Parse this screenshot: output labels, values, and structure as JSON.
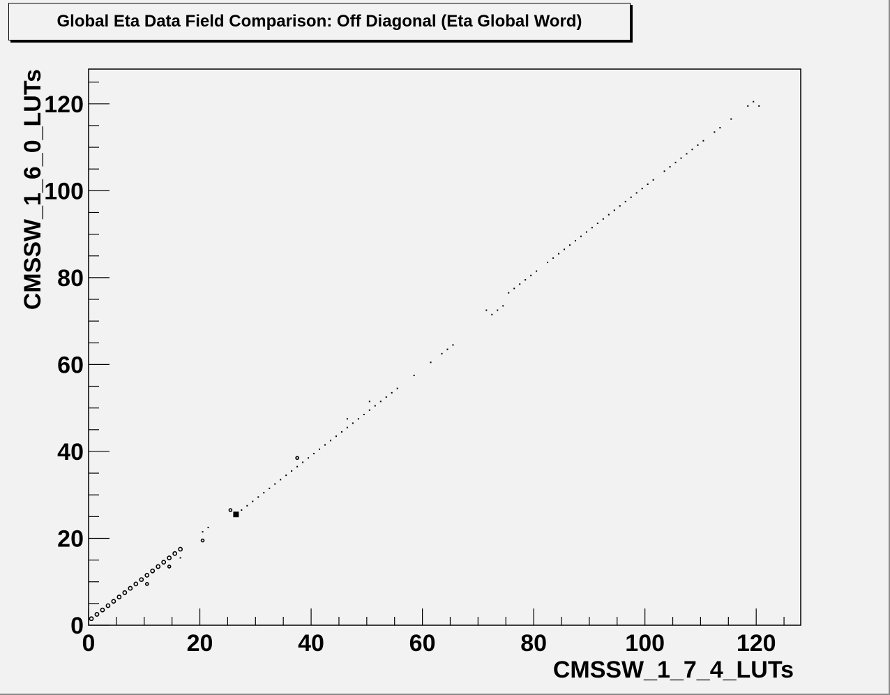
{
  "chart_data": {
    "type": "scatter",
    "title": "Global Eta Data Field Comparison: Off Diagonal (Eta Global Word)",
    "xlabel": "CMSSW_1_7_4_LUTs",
    "ylabel": "CMSSW_1_6_0_LUTs",
    "xlim": [
      0,
      128
    ],
    "ylim": [
      0,
      128
    ],
    "x_ticks": [
      0,
      20,
      40,
      60,
      80,
      100,
      120
    ],
    "y_ticks": [
      0,
      20,
      40,
      60,
      80,
      100,
      120
    ],
    "x_tick_labels": [
      "0",
      "20",
      "40",
      "60",
      "80",
      "100",
      "120"
    ],
    "y_tick_labels": [
      "0",
      "20",
      "40",
      "60",
      "80",
      "100",
      "120"
    ],
    "grid": false,
    "marker_color": "#000000",
    "background": "#f2f2f2",
    "points": [
      {
        "x": 0.5,
        "y": 1.5,
        "w": 3
      },
      {
        "x": 1.5,
        "y": 2.5,
        "w": 3
      },
      {
        "x": 2.5,
        "y": 3.5,
        "w": 3
      },
      {
        "x": 3.5,
        "y": 4.5,
        "w": 3
      },
      {
        "x": 4.5,
        "y": 5.5,
        "w": 3
      },
      {
        "x": 5.5,
        "y": 6.5,
        "w": 3
      },
      {
        "x": 6.5,
        "y": 7.5,
        "w": 3
      },
      {
        "x": 7.5,
        "y": 8.5,
        "w": 3
      },
      {
        "x": 8.5,
        "y": 9.5,
        "w": 3
      },
      {
        "x": 9.5,
        "y": 10.5,
        "w": 3
      },
      {
        "x": 10.5,
        "y": 11.5,
        "w": 3
      },
      {
        "x": 11.5,
        "y": 12.5,
        "w": 3
      },
      {
        "x": 12.5,
        "y": 13.5,
        "w": 3
      },
      {
        "x": 13.5,
        "y": 14.5,
        "w": 3
      },
      {
        "x": 14.5,
        "y": 15.5,
        "w": 3
      },
      {
        "x": 15.5,
        "y": 16.5,
        "w": 3
      },
      {
        "x": 16.5,
        "y": 17.5,
        "w": 3
      },
      {
        "x": 10.5,
        "y": 9.5,
        "w": 2
      },
      {
        "x": 14.5,
        "y": 13.5,
        "w": 2
      },
      {
        "x": 16.5,
        "y": 15.5,
        "w": 1
      },
      {
        "x": 20.5,
        "y": 19.5,
        "w": 2
      },
      {
        "x": 20.5,
        "y": 21.5,
        "w": 1
      },
      {
        "x": 21.5,
        "y": 22.5,
        "w": 1
      },
      {
        "x": 25.5,
        "y": 26.5,
        "w": 2
      },
      {
        "x": 26.5,
        "y": 25.5,
        "w": 5
      },
      {
        "x": 27.5,
        "y": 26.5,
        "w": 1
      },
      {
        "x": 28.5,
        "y": 27.5,
        "w": 1
      },
      {
        "x": 29.5,
        "y": 28.5,
        "w": 1
      },
      {
        "x": 30.5,
        "y": 29.5,
        "w": 1
      },
      {
        "x": 31.5,
        "y": 30.5,
        "w": 1
      },
      {
        "x": 32.5,
        "y": 31.5,
        "w": 1
      },
      {
        "x": 33.5,
        "y": 32.5,
        "w": 1
      },
      {
        "x": 34.5,
        "y": 33.5,
        "w": 1
      },
      {
        "x": 35.5,
        "y": 34.5,
        "w": 1
      },
      {
        "x": 36.5,
        "y": 35.5,
        "w": 1
      },
      {
        "x": 37.5,
        "y": 36.5,
        "w": 1
      },
      {
        "x": 37.5,
        "y": 38.5,
        "w": 2
      },
      {
        "x": 38.5,
        "y": 37.5,
        "w": 1
      },
      {
        "x": 39.5,
        "y": 38.5,
        "w": 1
      },
      {
        "x": 40.5,
        "y": 39.5,
        "w": 1
      },
      {
        "x": 41.5,
        "y": 40.5,
        "w": 1
      },
      {
        "x": 42.5,
        "y": 41.5,
        "w": 1
      },
      {
        "x": 43.5,
        "y": 42.5,
        "w": 1
      },
      {
        "x": 44.5,
        "y": 43.5,
        "w": 1
      },
      {
        "x": 45.5,
        "y": 44.5,
        "w": 1
      },
      {
        "x": 46.5,
        "y": 45.5,
        "w": 1
      },
      {
        "x": 46.5,
        "y": 47.5,
        "w": 1
      },
      {
        "x": 47.5,
        "y": 46.5,
        "w": 1
      },
      {
        "x": 48.5,
        "y": 47.5,
        "w": 1
      },
      {
        "x": 49.5,
        "y": 48.5,
        "w": 1
      },
      {
        "x": 50.5,
        "y": 49.5,
        "w": 1
      },
      {
        "x": 50.5,
        "y": 51.5,
        "w": 1
      },
      {
        "x": 51.5,
        "y": 50.5,
        "w": 1
      },
      {
        "x": 52.5,
        "y": 51.5,
        "w": 1
      },
      {
        "x": 53.5,
        "y": 52.5,
        "w": 1
      },
      {
        "x": 54.5,
        "y": 53.5,
        "w": 1
      },
      {
        "x": 55.5,
        "y": 54.5,
        "w": 1
      },
      {
        "x": 58.5,
        "y": 57.5,
        "w": 1
      },
      {
        "x": 61.5,
        "y": 60.5,
        "w": 1
      },
      {
        "x": 63.5,
        "y": 62.5,
        "w": 1
      },
      {
        "x": 64.5,
        "y": 63.5,
        "w": 1
      },
      {
        "x": 65.5,
        "y": 64.5,
        "w": 1
      },
      {
        "x": 71.5,
        "y": 72.5,
        "w": 1
      },
      {
        "x": 72.5,
        "y": 71.5,
        "w": 1
      },
      {
        "x": 73.5,
        "y": 72.5,
        "w": 1
      },
      {
        "x": 74.5,
        "y": 73.5,
        "w": 1
      },
      {
        "x": 75.5,
        "y": 76.5,
        "w": 1
      },
      {
        "x": 76.5,
        "y": 77.5,
        "w": 1
      },
      {
        "x": 77.5,
        "y": 78.5,
        "w": 1
      },
      {
        "x": 78.5,
        "y": 79.5,
        "w": 1
      },
      {
        "x": 79.5,
        "y": 80.5,
        "w": 1
      },
      {
        "x": 80.5,
        "y": 81.5,
        "w": 1
      },
      {
        "x": 82.5,
        "y": 83.5,
        "w": 1
      },
      {
        "x": 83.5,
        "y": 84.5,
        "w": 1
      },
      {
        "x": 84.5,
        "y": 85.5,
        "w": 1
      },
      {
        "x": 85.5,
        "y": 86.5,
        "w": 1
      },
      {
        "x": 86.5,
        "y": 87.5,
        "w": 1
      },
      {
        "x": 87.5,
        "y": 88.5,
        "w": 1
      },
      {
        "x": 88.5,
        "y": 89.5,
        "w": 1
      },
      {
        "x": 89.5,
        "y": 90.5,
        "w": 1
      },
      {
        "x": 90.5,
        "y": 91.5,
        "w": 1
      },
      {
        "x": 91.5,
        "y": 92.5,
        "w": 1
      },
      {
        "x": 92.5,
        "y": 93.5,
        "w": 1
      },
      {
        "x": 93.5,
        "y": 94.5,
        "w": 1
      },
      {
        "x": 94.5,
        "y": 95.5,
        "w": 1
      },
      {
        "x": 95.5,
        "y": 96.5,
        "w": 1
      },
      {
        "x": 96.5,
        "y": 97.5,
        "w": 1
      },
      {
        "x": 97.5,
        "y": 98.5,
        "w": 1
      },
      {
        "x": 98.5,
        "y": 99.5,
        "w": 1
      },
      {
        "x": 99.5,
        "y": 100.5,
        "w": 1
      },
      {
        "x": 100.5,
        "y": 101.5,
        "w": 1
      },
      {
        "x": 101.5,
        "y": 102.5,
        "w": 1
      },
      {
        "x": 103.5,
        "y": 104.5,
        "w": 1
      },
      {
        "x": 104.5,
        "y": 105.5,
        "w": 1
      },
      {
        "x": 105.5,
        "y": 106.5,
        "w": 1
      },
      {
        "x": 106.5,
        "y": 107.5,
        "w": 1
      },
      {
        "x": 107.5,
        "y": 108.5,
        "w": 1
      },
      {
        "x": 108.5,
        "y": 109.5,
        "w": 1
      },
      {
        "x": 109.5,
        "y": 110.5,
        "w": 1
      },
      {
        "x": 110.5,
        "y": 111.5,
        "w": 1
      },
      {
        "x": 112.5,
        "y": 113.5,
        "w": 1
      },
      {
        "x": 113.5,
        "y": 114.5,
        "w": 1
      },
      {
        "x": 115.5,
        "y": 116.5,
        "w": 1
      },
      {
        "x": 118.5,
        "y": 119.5,
        "w": 1
      },
      {
        "x": 119.5,
        "y": 120.5,
        "w": 1
      },
      {
        "x": 120.5,
        "y": 119.5,
        "w": 1
      }
    ]
  }
}
